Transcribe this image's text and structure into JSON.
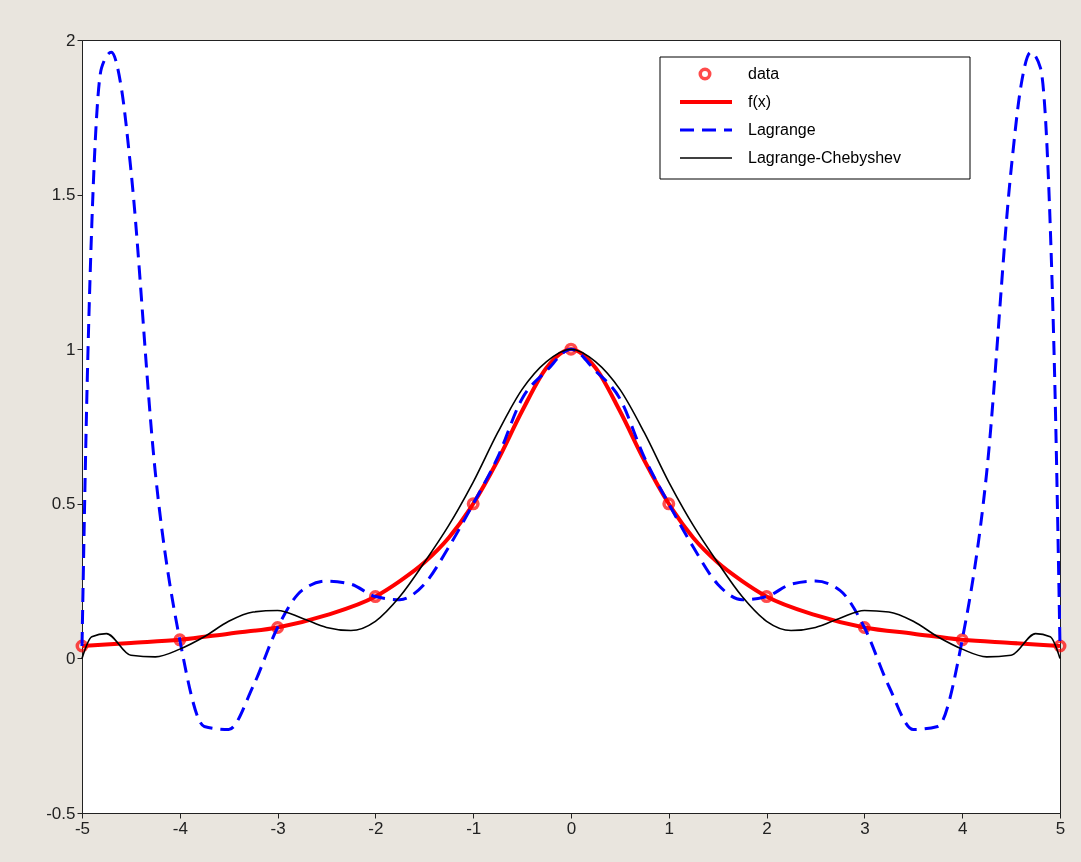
{
  "chart_data": {
    "type": "line",
    "xlim": [
      -5,
      5
    ],
    "ylim": [
      -0.5,
      2
    ],
    "xticks": [
      -5,
      -4,
      -3,
      -2,
      -1,
      0,
      1,
      2,
      3,
      4,
      5
    ],
    "yticks": [
      -0.5,
      0,
      0.5,
      1,
      1.5,
      2
    ],
    "grid": false,
    "legend": "top right",
    "series": [
      {
        "name": "data",
        "type": "scatter",
        "marker": "circle",
        "color": "#ff0000",
        "x": [
          -5,
          -4,
          -3,
          -2,
          -1,
          0,
          1,
          2,
          3,
          4,
          5
        ],
        "values": [
          0.04,
          0.06,
          0.1,
          0.2,
          0.5,
          1,
          0.5,
          0.2,
          0.1,
          0.06,
          0.04
        ]
      },
      {
        "name": "f(x)",
        "line_style": "solid",
        "color": "#ff0000",
        "x": [
          -5,
          -4.5,
          -4,
          -3.5,
          -3,
          -2.5,
          -2,
          -1.75,
          -1.5,
          -1.25,
          -1,
          -0.75,
          -0.5,
          -0.25,
          0,
          0.25,
          0.5,
          0.75,
          1,
          1.25,
          1.5,
          1.75,
          2,
          2.5,
          3,
          3.5,
          4,
          4.5,
          5
        ],
        "values": [
          0.04,
          0.05,
          0.06,
          0.08,
          0.1,
          0.14,
          0.2,
          0.25,
          0.31,
          0.39,
          0.5,
          0.64,
          0.8,
          0.94,
          1,
          0.94,
          0.8,
          0.64,
          0.5,
          0.39,
          0.31,
          0.25,
          0.2,
          0.14,
          0.1,
          0.08,
          0.06,
          0.05,
          0.04
        ]
      },
      {
        "name": "Lagrange",
        "line_style": "dashed",
        "color": "#0000ff",
        "x": [
          -5,
          -4.95,
          -4.9,
          -4.8,
          -4.7,
          -4.6,
          -4.5,
          -4.25,
          -4,
          -3.75,
          -3.5,
          -3.25,
          -3,
          -2.75,
          -2.5,
          -2.25,
          -2,
          -1.75,
          -1.5,
          -1.25,
          -1,
          -0.75,
          -0.5,
          -0.25,
          0,
          0.25,
          0.5,
          0.75,
          1,
          1.25,
          1.5,
          1.75,
          2,
          2.25,
          2.5,
          2.75,
          3,
          3.25,
          3.5,
          3.75,
          4,
          4.25,
          4.5,
          4.6,
          4.7,
          4.8,
          4.9,
          4.95,
          5
        ],
        "values": [
          0.04,
          0.85,
          1.4,
          1.91,
          1.96,
          1.85,
          1.58,
          0.6,
          0.06,
          -0.22,
          -0.23,
          -0.09,
          0.1,
          0.22,
          0.25,
          0.24,
          0.2,
          0.19,
          0.24,
          0.36,
          0.5,
          0.65,
          0.84,
          0.93,
          1,
          0.93,
          0.84,
          0.65,
          0.5,
          0.36,
          0.24,
          0.19,
          0.2,
          0.24,
          0.25,
          0.22,
          0.1,
          -0.09,
          -0.23,
          -0.22,
          0.06,
          0.6,
          1.58,
          1.85,
          1.96,
          1.91,
          1.4,
          0.85,
          0.04
        ]
      },
      {
        "name": "Lagrange-Chebyshev",
        "line_style": "solid",
        "color": "#000000",
        "x": [
          -5,
          -4.9,
          -4.75,
          -4.5,
          -4.25,
          -4,
          -3.75,
          -3.5,
          -3.25,
          -3,
          -2.75,
          -2.5,
          -2.25,
          -2,
          -1.75,
          -1.5,
          -1.25,
          -1,
          -0.75,
          -0.5,
          -0.25,
          0,
          0.25,
          0.5,
          0.75,
          1,
          1.25,
          1.5,
          1.75,
          2,
          2.25,
          2.5,
          2.75,
          3,
          3.25,
          3.5,
          3.75,
          4,
          4.25,
          4.5,
          4.75,
          4.9,
          5
        ],
        "values": [
          0,
          0.07,
          0.08,
          0.01,
          0.005,
          0.03,
          0.07,
          0.12,
          0.15,
          0.155,
          0.13,
          0.1,
          0.09,
          0.12,
          0.2,
          0.31,
          0.43,
          0.57,
          0.73,
          0.87,
          0.96,
          1,
          0.96,
          0.87,
          0.73,
          0.57,
          0.43,
          0.31,
          0.2,
          0.12,
          0.09,
          0.1,
          0.13,
          0.155,
          0.15,
          0.12,
          0.07,
          0.03,
          0.005,
          0.01,
          0.08,
          0.07,
          0
        ]
      }
    ]
  }
}
